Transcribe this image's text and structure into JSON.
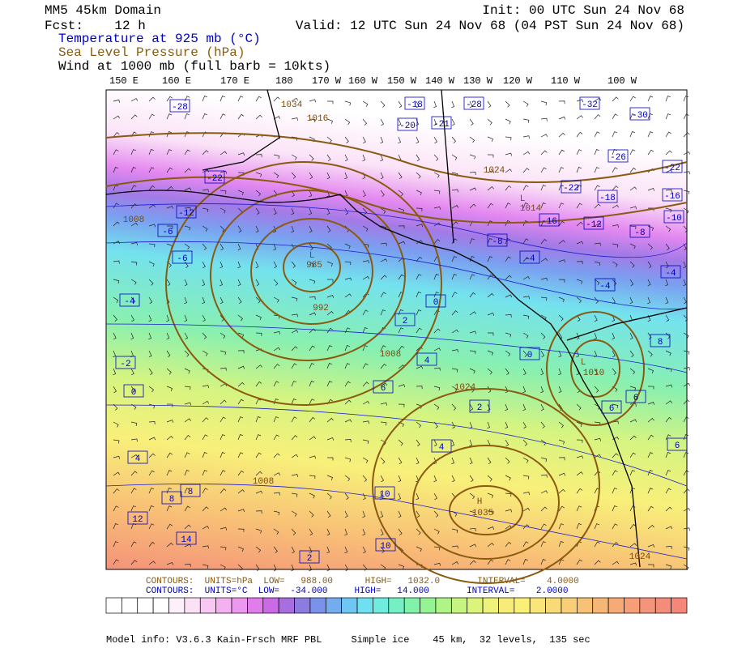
{
  "header": {
    "domain": "MM5 45km Domain",
    "fcst": "Fcst:    12 h",
    "init": "Init: 00 UTC Sun 24 Nov 68",
    "valid": "Valid: 12 UTC Sun 24 Nov 68 (04 PST Sun 24 Nov 68)",
    "fields": [
      "Temperature at 925 mb (°C)",
      "Sea Level Pressure (hPa)",
      "Wind at 1000 mb (full barb = 10kts)"
    ]
  },
  "longitudes": [
    "150 E",
    "160 E",
    "170 E",
    "180",
    "170 W",
    "160 W",
    "150 W",
    "140 W",
    "130 W",
    "120 W",
    "110 W",
    "100 W"
  ],
  "map": {
    "temperature_labels": [
      "-28",
      "-18",
      "-20",
      "-21",
      "-28",
      "-32",
      "-30",
      "-26",
      "-22",
      "-22",
      "-22",
      "-16",
      "-18",
      "-10",
      "-12",
      "-16",
      "-12",
      "-8",
      "-6",
      "-6",
      "-8",
      "-4",
      "-4",
      "-4",
      "-4",
      "-2",
      "0",
      "2",
      "0",
      "0",
      "4",
      "6",
      "2",
      "4",
      "6",
      "6",
      "8",
      "4",
      "6",
      "8",
      "10",
      "12",
      "14",
      "10",
      "2",
      "8"
    ],
    "pressure_labels": [
      "1034",
      "1016",
      "1024",
      "1008",
      "1014",
      "985",
      "992",
      "1008",
      "1024",
      "1010",
      "1008",
      "1035",
      "1024"
    ],
    "centers": [
      "L",
      "L",
      "L",
      "H"
    ]
  },
  "contour_info": [
    "CONTOURS:  UNITS=hPa  LOW=   988.00      HIGH=   1032.0       INTERVAL=    4.0000",
    "CONTOURS:  UNITS=°C  LOW=  -34.000     HIGH=   14.000       INTERVAL=    2.0000"
  ],
  "footer": "Model info: V3.6.3 Kain-Frsch MRF PBL     Simple ice    45 km,  32 levels,  135 sec"
}
